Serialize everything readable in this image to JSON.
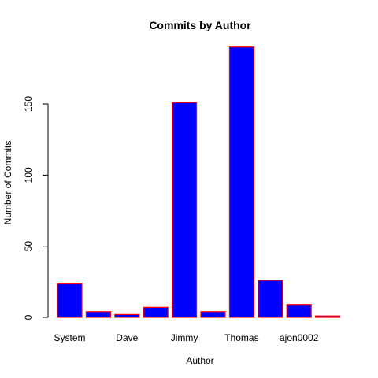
{
  "chart_data": {
    "type": "bar",
    "title": "Commits by Author",
    "xlabel": "Author",
    "ylabel": "Number of Commits",
    "categories": [
      "System",
      "",
      "Dave",
      "",
      "Jimmy",
      "",
      "Thomas",
      "",
      "ajon0002",
      ""
    ],
    "values": [
      24,
      4,
      2,
      7,
      151,
      4,
      190,
      26,
      9,
      1
    ],
    "yticks": [
      0,
      50,
      100,
      150
    ],
    "ylim": [
      0,
      190
    ],
    "grid": false,
    "colors": {
      "fill": "#0000ff",
      "border": "#ff0000"
    }
  }
}
